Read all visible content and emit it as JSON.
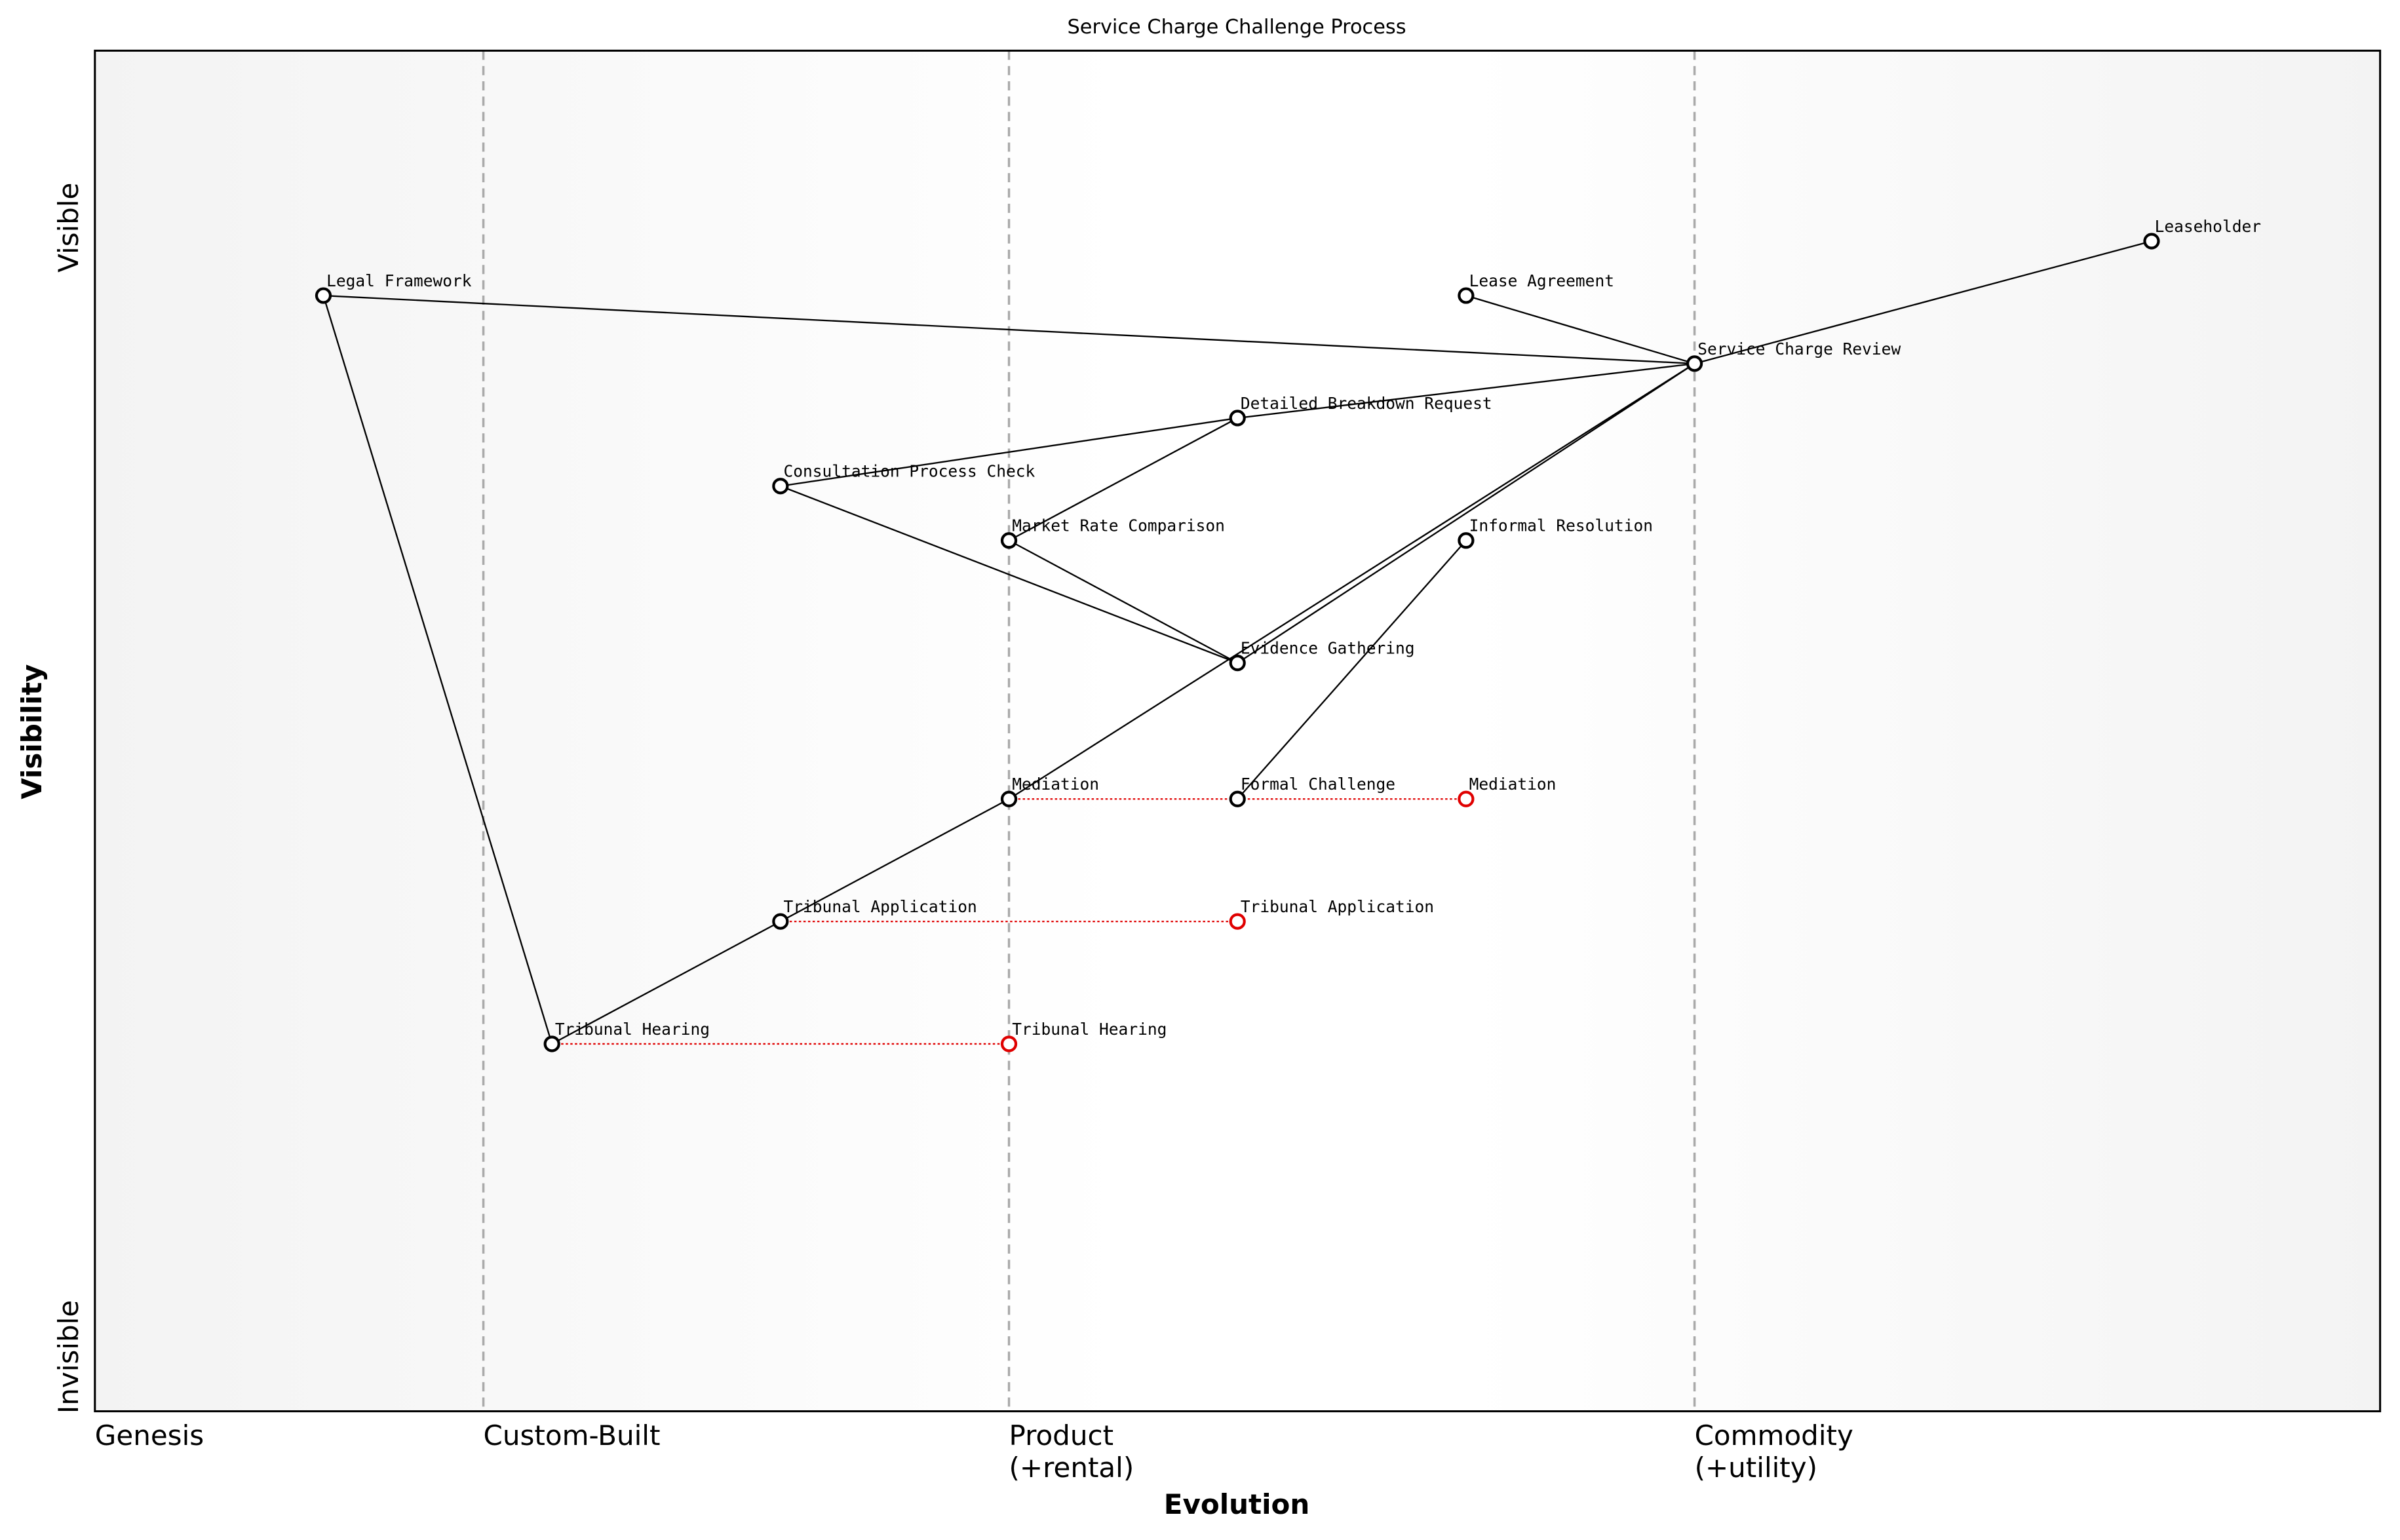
{
  "chart_data": {
    "type": "wardley",
    "title": "Service Charge Challenge Process",
    "x_label": "Evolution",
    "y_label": "Visibility",
    "xlim": [
      0,
      1
    ],
    "ylim": [
      0,
      1
    ],
    "xticks": [
      {
        "value": 0,
        "label": "Genesis"
      },
      {
        "value": 0.17,
        "label": "Custom-Built"
      },
      {
        "value": 0.4,
        "label": "Product\n(+rental)"
      },
      {
        "value": 0.7,
        "label": "Commodity\n(+utility)"
      }
    ],
    "yticks": [
      {
        "value": 0.04,
        "label": "Invisible"
      },
      {
        "value": 0.87,
        "label": "Visible"
      }
    ],
    "components": [
      {
        "name": "Leaseholder",
        "x": 0.9,
        "y": 0.86
      },
      {
        "name": "Legal Framework",
        "x": 0.1,
        "y": 0.82
      },
      {
        "name": "Lease Agreement",
        "x": 0.6,
        "y": 0.82
      },
      {
        "name": "Service Charge Review",
        "x": 0.7,
        "y": 0.77
      },
      {
        "name": "Detailed Breakdown Request",
        "x": 0.5,
        "y": 0.73
      },
      {
        "name": "Consultation Process Check",
        "x": 0.3,
        "y": 0.68
      },
      {
        "name": "Market Rate Comparison",
        "x": 0.4,
        "y": 0.64
      },
      {
        "name": "Informal Resolution",
        "x": 0.6,
        "y": 0.64
      },
      {
        "name": "Evidence Gathering",
        "x": 0.5,
        "y": 0.55
      },
      {
        "name": "Mediation",
        "x": 0.4,
        "y": 0.45
      },
      {
        "name": "Formal Challenge",
        "x": 0.5,
        "y": 0.45
      },
      {
        "name": "Tribunal Application",
        "x": 0.3,
        "y": 0.36
      },
      {
        "name": "Tribunal Hearing",
        "x": 0.2,
        "y": 0.27
      }
    ],
    "links": [
      [
        "Leaseholder",
        "Service Charge Review"
      ],
      [
        "Lease Agreement",
        "Service Charge Review"
      ],
      [
        "Legal Framework",
        "Service Charge Review"
      ],
      [
        "Service Charge Review",
        "Detailed Breakdown Request"
      ],
      [
        "Service Charge Review",
        "Evidence Gathering"
      ],
      [
        "Service Charge Review",
        "Mediation"
      ],
      [
        "Detailed Breakdown Request",
        "Consultation Process Check"
      ],
      [
        "Detailed Breakdown Request",
        "Market Rate Comparison"
      ],
      [
        "Consultation Process Check",
        "Evidence Gathering"
      ],
      [
        "Market Rate Comparison",
        "Evidence Gathering"
      ],
      [
        "Informal Resolution",
        "Formal Challenge"
      ],
      [
        "Mediation",
        "Tribunal Application"
      ],
      [
        "Tribunal Application",
        "Tribunal Hearing"
      ],
      [
        "Legal Framework",
        "Tribunal Hearing"
      ]
    ],
    "evolutions": [
      {
        "component": "Mediation",
        "x": 0.6
      },
      {
        "component": "Tribunal Application",
        "x": 0.5
      },
      {
        "component": "Tribunal Hearing",
        "x": 0.4
      }
    ],
    "link_color": "#000000",
    "evolve_color": "#e00000",
    "grid": true
  }
}
